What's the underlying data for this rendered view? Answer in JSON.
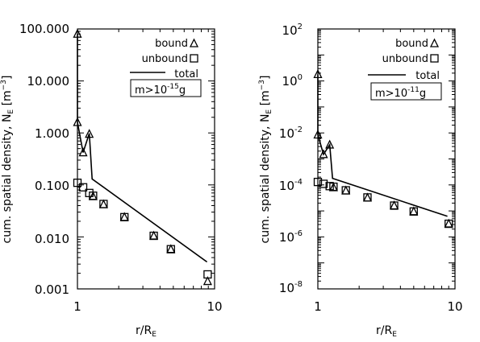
{
  "chart_data": [
    {
      "type": "scatter",
      "xlabel": "r/R_E",
      "ylabel": "cum. spatial density, N_E [m^-3]",
      "xscale": "log",
      "yscale": "log",
      "xlim": [
        1,
        10
      ],
      "ylim": [
        0.001,
        100
      ],
      "xticks": [
        "1",
        "10"
      ],
      "yticks": [
        "0.001",
        "0.010",
        "0.100",
        "1.000",
        "10.000",
        "100.000"
      ],
      "legend": {
        "placement": "top-right",
        "bound_label": "bound",
        "unbound_label": "unbound",
        "total_label": "total",
        "mass_label_prefix": "m>10",
        "mass_label_exp": "-15",
        "mass_label_unit": "g"
      },
      "series": [
        {
          "name": "bound",
          "marker": "triangle",
          "points": [
            [
              1.0,
              80
            ],
            [
              1.0,
              1.6
            ],
            [
              1.1,
              0.42
            ],
            [
              1.22,
              0.95
            ],
            [
              1.3,
              0.06
            ],
            [
              1.55,
              0.042
            ],
            [
              2.2,
              0.024
            ],
            [
              3.6,
              0.0105
            ],
            [
              4.8,
              0.0058
            ],
            [
              8.9,
              0.0014
            ]
          ]
        },
        {
          "name": "unbound",
          "marker": "square",
          "points": [
            [
              1.0,
              0.11
            ],
            [
              1.1,
              0.09
            ],
            [
              1.22,
              0.07
            ],
            [
              1.3,
              0.062
            ],
            [
              1.55,
              0.043
            ],
            [
              2.2,
              0.024
            ],
            [
              3.6,
              0.0105
            ],
            [
              4.8,
              0.0058
            ],
            [
              8.9,
              0.0019
            ]
          ]
        },
        {
          "name": "total",
          "marker": "line",
          "points": [
            [
              1.0,
              80
            ],
            [
              1.0,
              1.6
            ],
            [
              1.1,
              0.42
            ],
            [
              1.22,
              0.98
            ],
            [
              1.28,
              0.13
            ],
            [
              8.8,
              0.0033
            ]
          ]
        }
      ]
    },
    {
      "type": "scatter",
      "xlabel": "r/R_E",
      "ylabel": "cum. spatial density, N_E [m^-3]",
      "xscale": "log",
      "yscale": "log",
      "xlim": [
        1,
        10
      ],
      "ylim": [
        1e-08,
        100
      ],
      "xticks": [
        "1",
        "10"
      ],
      "yticks": [
        {
          "base": "10",
          "exp": "-8"
        },
        {
          "base": "10",
          "exp": "-6"
        },
        {
          "base": "10",
          "exp": "-4"
        },
        {
          "base": "10",
          "exp": "-2"
        },
        {
          "base": "10",
          "exp": "0"
        },
        {
          "base": "10",
          "exp": "2"
        }
      ],
      "legend": {
        "placement": "top-right",
        "bound_label": "bound",
        "unbound_label": "unbound",
        "total_label": "total",
        "mass_label_prefix": "m>10",
        "mass_label_exp": "-11",
        "mass_label_unit": "g"
      },
      "series": [
        {
          "name": "bound",
          "marker": "triangle",
          "points": [
            [
              1.0,
              1.8
            ],
            [
              1.0,
              0.0085
            ],
            [
              1.1,
              0.0015
            ],
            [
              1.22,
              0.0035
            ],
            [
              1.3,
              8e-05
            ],
            [
              1.6,
              6e-05
            ],
            [
              2.3,
              3.2e-05
            ],
            [
              3.6,
              1.6e-05
            ],
            [
              5.0,
              9.5e-06
            ],
            [
              9.0,
              3.2e-06
            ]
          ]
        },
        {
          "name": "unbound",
          "marker": "square",
          "points": [
            [
              1.0,
              0.00013
            ],
            [
              1.1,
              0.00011
            ],
            [
              1.22,
              9e-05
            ],
            [
              1.3,
              8.5e-05
            ],
            [
              1.6,
              6.2e-05
            ],
            [
              2.3,
              3.3e-05
            ],
            [
              3.6,
              1.6e-05
            ],
            [
              5.0,
              9.5e-06
            ],
            [
              9.0,
              3.2e-06
            ]
          ]
        },
        {
          "name": "total",
          "marker": "line",
          "points": [
            [
              1.0,
              1.8
            ],
            [
              1.0,
              0.0085
            ],
            [
              1.1,
              0.0015
            ],
            [
              1.22,
              0.0035
            ],
            [
              1.28,
              0.00018
            ],
            [
              8.8,
              6.2e-06
            ]
          ]
        }
      ]
    }
  ]
}
